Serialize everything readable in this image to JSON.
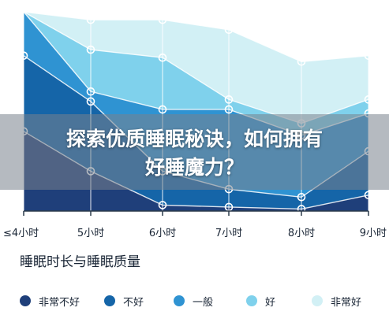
{
  "banner": {
    "line1": "探索优质睡眠秘诀，如何拥有",
    "line2": "好睡魔力？"
  },
  "chart_data": {
    "type": "area",
    "title": "睡眠时长与睡眠质量",
    "categories": [
      "≤4小时",
      "5小时",
      "6小时",
      "7小时",
      "8小时",
      "9小时"
    ],
    "ylim": [
      0,
      100
    ],
    "grid": true,
    "legend_position": "bottom",
    "series": [
      {
        "name": "非常不好",
        "color": "#1f3f7a",
        "values": [
          40,
          20,
          3,
          2,
          1,
          8
        ]
      },
      {
        "name": "不好",
        "color": "#1565a8",
        "values": [
          78,
          55,
          20,
          11,
          7,
          30
        ]
      },
      {
        "name": "一般",
        "color": "#2f93d2",
        "values": [
          100,
          60,
          51,
          51,
          38,
          49
        ]
      },
      {
        "name": "好",
        "color": "#7fd1ec",
        "values": [
          100,
          81,
          77,
          56,
          44,
          56
        ]
      },
      {
        "name": "非常好",
        "color": "#d2f0f5",
        "values": [
          100,
          96,
          96,
          91,
          75,
          78
        ]
      }
    ]
  }
}
